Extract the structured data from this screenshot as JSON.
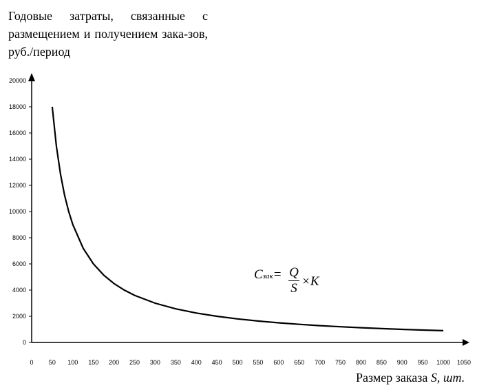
{
  "chart_data": {
    "type": "line",
    "ylabel": "Годовые затраты, связанные с размещением и получением зака-зов, руб./период",
    "xlabel_prefix": "Размер заказа ",
    "xlabel_symbol": "S, шт.",
    "xlim": [
      0,
      1050
    ],
    "ylim": [
      0,
      20000
    ],
    "x_ticks": [
      0,
      50,
      100,
      150,
      200,
      250,
      300,
      350,
      400,
      450,
      500,
      550,
      600,
      650,
      700,
      750,
      800,
      850,
      900,
      950,
      1000,
      1050
    ],
    "y_ticks": [
      0,
      2000,
      4000,
      6000,
      8000,
      10000,
      12000,
      14000,
      16000,
      18000,
      20000
    ],
    "series": [
      {
        "x": [
          50,
          60,
          70,
          80,
          90,
          100,
          125,
          150,
          175,
          200,
          225,
          250,
          300,
          350,
          400,
          450,
          500,
          550,
          600,
          650,
          700,
          750,
          800,
          850,
          900,
          950,
          1000
        ],
        "y": [
          18000,
          15000,
          12857,
          11250,
          10000,
          9000,
          7200,
          6000,
          5143,
          4500,
          4000,
          3600,
          3000,
          2571,
          2250,
          2000,
          1800,
          1636,
          1500,
          1385,
          1286,
          1200,
          1125,
          1059,
          1000,
          947,
          900
        ]
      }
    ],
    "grid": false,
    "legend": "none"
  },
  "formula": {
    "c": "C",
    "sub": "зак",
    "eq": "=",
    "num": "Q",
    "den": "S",
    "times": "×",
    "k": "K"
  }
}
